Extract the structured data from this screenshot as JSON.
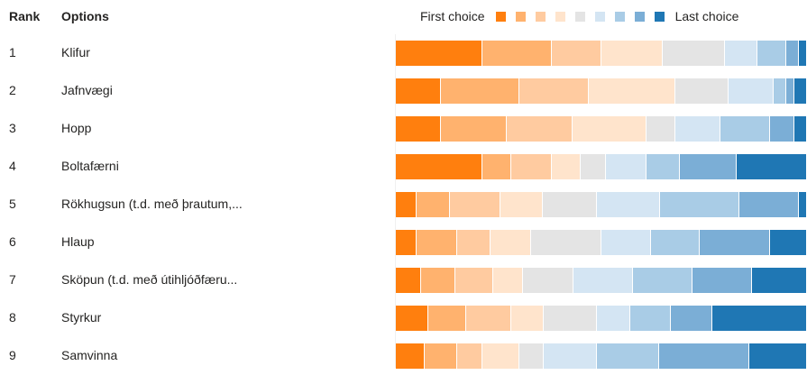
{
  "headers": {
    "rank": "Rank",
    "options": "Options"
  },
  "legend": {
    "first_label": "First choice",
    "last_label": "Last choice",
    "colors": [
      "#FF7F0E",
      "#FFB26E",
      "#FFCBA0",
      "#FFE4CC",
      "#E4E4E4",
      "#D4E5F3",
      "#A9CCE6",
      "#7BAED6",
      "#1F77B4"
    ]
  },
  "chart_data": {
    "type": "bar",
    "stacked": true,
    "orientation": "horizontal",
    "normalized": true,
    "x": [
      "1",
      "2",
      "3",
      "4",
      "5",
      "6",
      "7",
      "8",
      "9"
    ],
    "categories": [
      "Klifur",
      "Jafnvægi",
      "Hopp",
      "Boltafærni",
      "Rökhugsun (t.d. með þrautum,...",
      "Hlaup",
      "Sköpun (t.d. með útihljóðfæru...",
      "Styrkur",
      "Samvinna"
    ],
    "ranks": [
      "1",
      "2",
      "3",
      "4",
      "5",
      "6",
      "7",
      "8",
      "9"
    ],
    "series": [
      {
        "values": [
          21,
          11,
          11,
          21,
          5,
          5,
          6,
          8,
          7
        ]
      },
      {
        "values": [
          17,
          19,
          16,
          7,
          8,
          10,
          8,
          9,
          8
        ]
      },
      {
        "values": [
          12,
          17,
          16,
          10,
          12,
          8,
          9,
          11,
          6
        ]
      },
      {
        "values": [
          15,
          21,
          18,
          7,
          10,
          10,
          7,
          8,
          9
        ]
      },
      {
        "values": [
          15,
          13,
          7,
          6,
          13,
          17,
          12,
          13,
          6
        ]
      },
      {
        "values": [
          8,
          11,
          11,
          10,
          15,
          12,
          14,
          8,
          13
        ]
      },
      {
        "values": [
          7,
          3,
          12,
          8,
          19,
          12,
          14,
          10,
          15
        ]
      },
      {
        "values": [
          3,
          2,
          6,
          14,
          14,
          17,
          14,
          10,
          22
        ]
      },
      {
        "values": [
          2,
          3,
          3,
          17,
          2,
          9,
          13,
          23,
          14
        ]
      }
    ],
    "xlim": [
      0,
      100
    ]
  }
}
